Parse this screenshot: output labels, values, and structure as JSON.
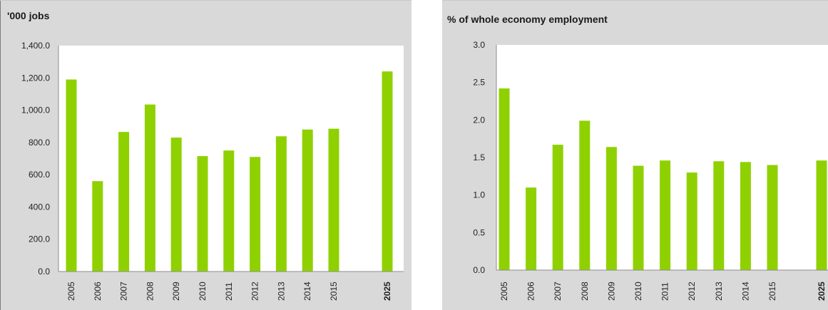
{
  "colors": {
    "bar": "#8fd100",
    "plot_background": "#ffffff",
    "panel_background": "#d9d9d9",
    "grid": "#bfbfbf"
  },
  "chart_data": [
    {
      "type": "bar",
      "title": "'000 jobs",
      "categories": [
        "2005",
        "2006",
        "2007",
        "2008",
        "2009",
        "2010",
        "2011",
        "2012",
        "2013",
        "2014",
        "2015",
        "2025"
      ],
      "values": [
        1190,
        560,
        865,
        1035,
        830,
        715,
        750,
        710,
        838,
        880,
        885,
        1240
      ],
      "ylim": [
        0,
        1400
      ],
      "yticks": [
        "0.0",
        "200.0",
        "400.0",
        "600.0",
        "800.0",
        "1,000.0",
        "1,200.0",
        "1,400.0"
      ],
      "gap_before_last": true,
      "bold_last_category": true,
      "grid": false
    },
    {
      "type": "bar",
      "title": "% of whole economy employment",
      "categories": [
        "2005",
        "2006",
        "2007",
        "2008",
        "2009",
        "2010",
        "2011",
        "2012",
        "2013",
        "2014",
        "2015",
        "2025"
      ],
      "values": [
        2.42,
        1.1,
        1.67,
        1.99,
        1.64,
        1.39,
        1.46,
        1.3,
        1.45,
        1.44,
        1.4,
        1.46
      ],
      "ylim": [
        0,
        3
      ],
      "yticks": [
        "0.0",
        "0.5",
        "1.0",
        "1.5",
        "2.0",
        "2.5",
        "3.0"
      ],
      "gap_before_last": true,
      "bold_last_category": true,
      "grid": false
    }
  ]
}
